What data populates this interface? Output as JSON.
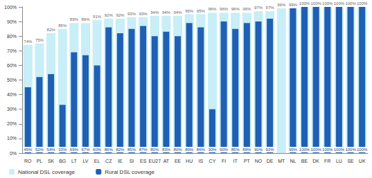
{
  "chart_data": {
    "type": "bar",
    "categories": [
      "RO",
      "PL",
      "SK",
      "BG",
      "LT",
      "LV",
      "EL",
      "CZ",
      "IE",
      "SI",
      "ES",
      "EU27",
      "AT",
      "EE",
      "HU",
      "IS",
      "CY",
      "FI",
      "IT",
      "PT",
      "NO",
      "DE",
      "MT",
      "NL",
      "BE",
      "DK",
      "FR",
      "LU",
      "SE",
      "UK"
    ],
    "series": [
      {
        "name": "National DSL coverage",
        "color": "#c8eef7",
        "values": [
          74,
          75,
          82,
          85,
          89,
          89,
          91,
          92,
          92,
          93,
          93,
          94,
          94,
          94,
          95,
          95,
          96,
          96,
          96,
          96,
          97,
          97,
          99,
          99,
          100,
          100,
          100,
          100,
          100,
          100
        ],
        "value_labels": [
          "74%",
          "75%",
          "82%",
          "85%",
          "89%",
          "89%",
          "91%",
          "92%",
          "92%",
          "93%",
          "93%",
          "94%",
          "94%",
          "94%",
          "95%",
          "95%",
          "96%",
          "96%",
          "96%",
          "96%",
          "97%",
          "97%",
          "99%",
          "99%",
          "100%",
          "100%",
          "100%",
          "100%",
          "100%",
          "100%"
        ]
      },
      {
        "name": "Rural DSL coverage",
        "color": "#1f5fb4",
        "values": [
          45,
          52,
          54,
          33,
          69,
          67,
          60,
          86,
          82,
          85,
          87,
          80,
          83,
          80,
          89,
          86,
          30,
          90,
          85,
          89,
          90,
          92,
          null,
          99,
          100,
          100,
          100,
          100,
          100,
          100
        ],
        "value_labels": [
          "45%",
          "52%",
          "54%",
          "33%",
          "69%",
          "67%",
          "60%",
          "86%",
          "82%",
          "85%",
          "87%",
          "80%",
          "83%",
          "80%",
          "89%",
          "86%",
          "30%",
          "90%",
          "85%",
          "89%",
          "90%",
          "92%",
          null,
          "99%",
          "100%",
          "100%",
          "100%",
          "100%",
          "100%",
          "100%"
        ]
      }
    ],
    "ylim": [
      0,
      100
    ],
    "yticks": [
      {
        "value": 0,
        "label": "0%"
      },
      {
        "value": 10,
        "label": "10%"
      },
      {
        "value": 20,
        "label": "20%"
      },
      {
        "value": 30,
        "label": "30%"
      },
      {
        "value": 40,
        "label": "40%"
      },
      {
        "value": 50,
        "label": "50%"
      },
      {
        "value": 60,
        "label": "60%"
      },
      {
        "value": 70,
        "label": "70%"
      },
      {
        "value": 80,
        "label": "80%"
      },
      {
        "value": 90,
        "label": "90%"
      },
      {
        "value": 100,
        "label": "100%"
      }
    ],
    "grid": false,
    "legend": "bottom-left",
    "data_labels": true
  }
}
